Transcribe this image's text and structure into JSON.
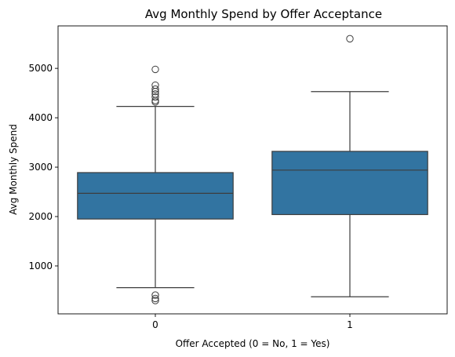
{
  "chart_data": {
    "type": "box",
    "title": "Avg Monthly Spend by Offer Acceptance",
    "xlabel": "Offer Accepted (0 = No, 1 = Yes)",
    "ylabel": "Avg Monthly Spend",
    "categories": [
      "0",
      "1"
    ],
    "ylim": [
      30,
      5860
    ],
    "yticks": [
      1000,
      2000,
      3000,
      4000,
      5000
    ],
    "grid": false,
    "box_color": "#3274a1",
    "line_color": "#3d3d3d",
    "boxes": [
      {
        "category": "0",
        "whisker_low": 560,
        "q1": 1950,
        "median": 2470,
        "q3": 2890,
        "whisker_high": 4230,
        "outliers": [
          300,
          340,
          410,
          4320,
          4350,
          4420,
          4480,
          4530,
          4580,
          4660,
          4980
        ]
      },
      {
        "category": "1",
        "whisker_low": 375,
        "q1": 2040,
        "median": 2940,
        "q3": 3320,
        "whisker_high": 4530,
        "outliers": [
          5600
        ]
      }
    ]
  }
}
